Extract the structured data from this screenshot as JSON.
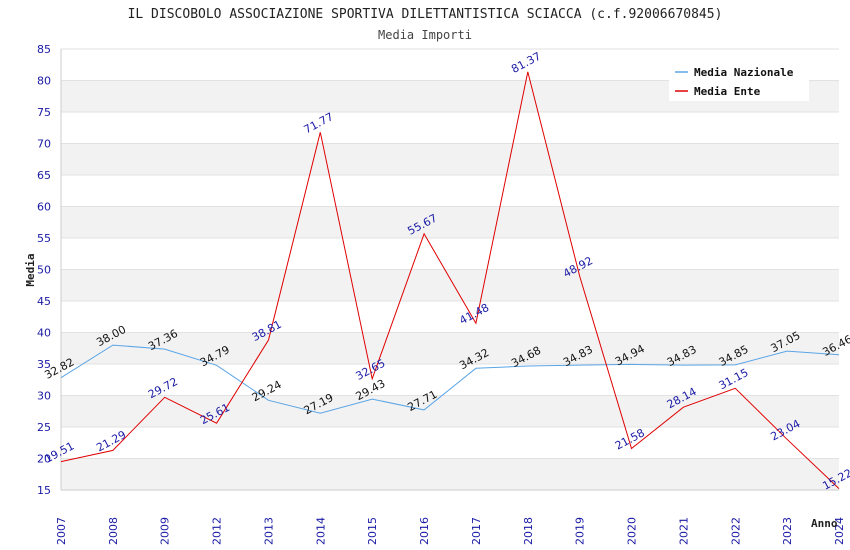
{
  "chart_data": {
    "type": "line",
    "title": "IL DISCOBOLO ASSOCIAZIONE SPORTIVA DILETTANTISTICA SCIACCA (c.f.92006670845)",
    "subtitle": "Media Importi",
    "xlabel": "Anno",
    "ylabel": "Media",
    "ylim": [
      15,
      85
    ],
    "yticks": [
      15,
      20,
      25,
      30,
      35,
      40,
      45,
      50,
      55,
      60,
      65,
      70,
      75,
      80,
      85
    ],
    "categories": [
      "2007",
      "2008",
      "2009",
      "2012",
      "2013",
      "2014",
      "2015",
      "2016",
      "2017",
      "2018",
      "2019",
      "2020",
      "2021",
      "2022",
      "2023",
      "2024"
    ],
    "grid": "horizontal bands",
    "legend_position": "top-right",
    "series": [
      {
        "name": "Media Nazionale",
        "color": "#5aa5e6",
        "values": [
          32.82,
          38.0,
          37.36,
          34.79,
          29.24,
          27.19,
          29.43,
          27.71,
          34.32,
          34.68,
          34.83,
          34.94,
          34.83,
          34.85,
          37.05,
          36.46
        ],
        "labels": [
          "32.82",
          "38.00",
          "37.36",
          "34.79",
          "29.24",
          "27.19",
          "29.43",
          "27.71",
          "34.32",
          "34.68",
          "34.83",
          "34.94",
          "34.83",
          "34.85",
          "37.05",
          "36.46"
        ]
      },
      {
        "name": "Media Ente",
        "color": "#e00000",
        "values": [
          19.51,
          21.29,
          29.72,
          25.61,
          38.81,
          71.77,
          32.65,
          55.67,
          41.48,
          81.37,
          48.92,
          21.58,
          28.14,
          31.15,
          23.04,
          15.22
        ],
        "labels": [
          "19.51",
          "21.29",
          "29.72",
          "25.61",
          "38.81",
          "71.77",
          "32.65",
          "55.67",
          "41.48",
          "81.37",
          "48.92",
          "21.58",
          "28.14",
          "31.15",
          "23.04",
          "15.22"
        ]
      }
    ]
  }
}
